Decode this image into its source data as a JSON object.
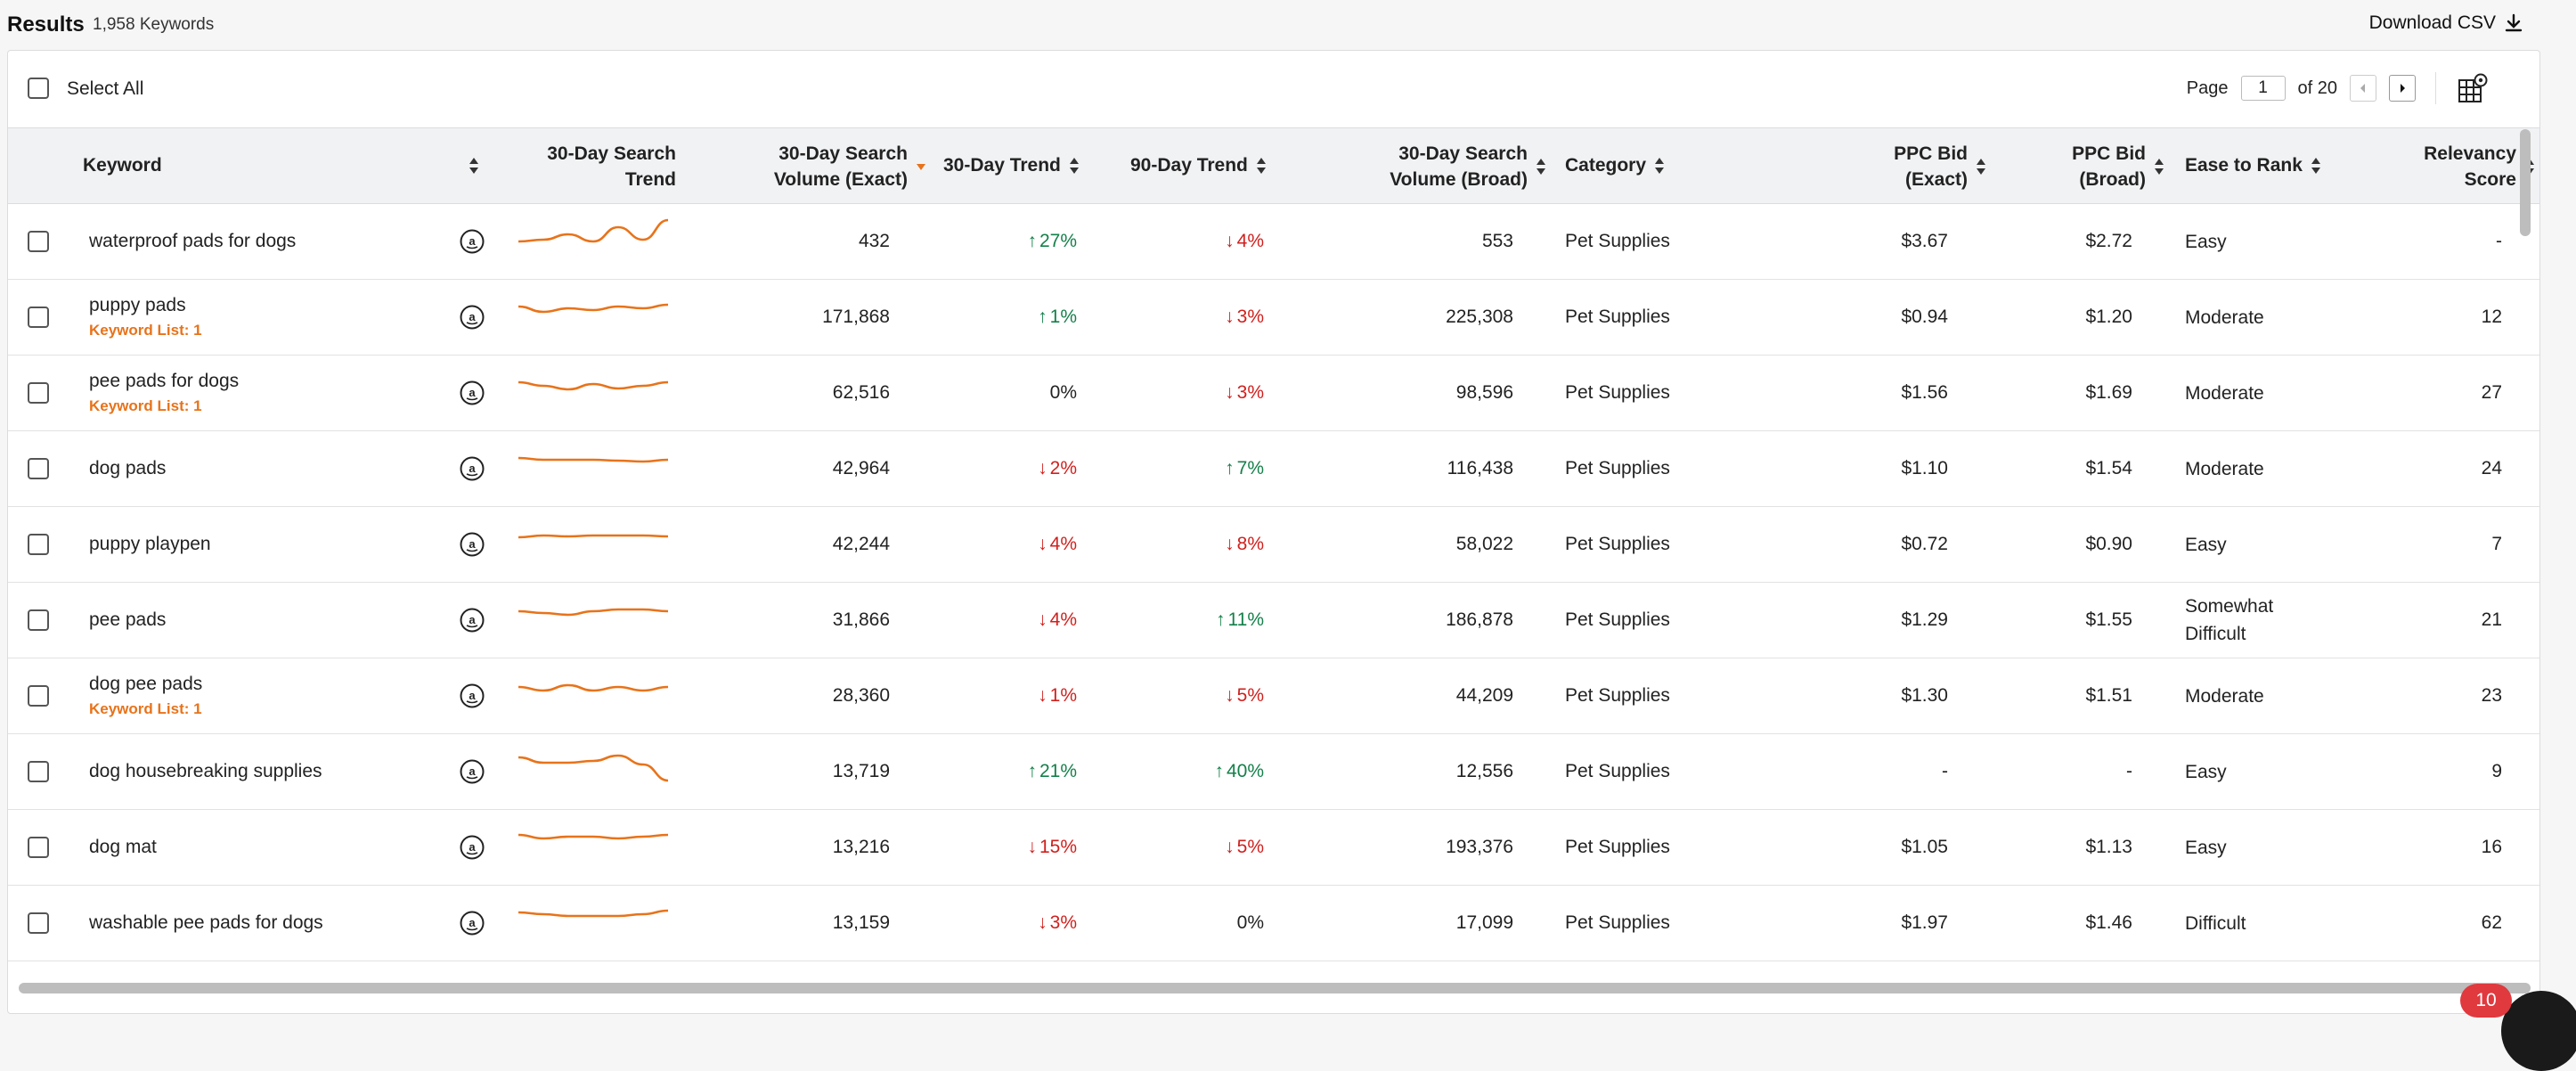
{
  "header": {
    "title": "Results",
    "count": "1,958 Keywords",
    "download_label": "Download CSV"
  },
  "toolbar": {
    "select_all": "Select All",
    "page_label": "Page",
    "page_value": "1",
    "page_of": "of 20"
  },
  "columns": {
    "keyword": "Keyword",
    "trend_chart": "30-Day Search\nTrend",
    "vol_exact": "30-Day Search\nVolume (Exact)",
    "trend30": "30-Day Trend",
    "trend90": "90-Day Trend",
    "vol_broad": "30-Day Search\nVolume (Broad)",
    "category": "Category",
    "ppc_exact": "PPC Bid\n(Exact)",
    "ppc_broad": "PPC Bid\n(Broad)",
    "ease": "Ease to Rank",
    "relevancy": "Relevancy\nScore"
  },
  "rows": [
    {
      "keyword": "waterproof pads for dogs",
      "list": "",
      "vol_exact": "432",
      "t30": "27%",
      "t30_dir": "up",
      "t90": "4%",
      "t90_dir": "down",
      "vol_broad": "553",
      "category": "Pet Supplies",
      "ppc_exact": "$3.67",
      "ppc_broad": "$2.72",
      "ease": "Easy",
      "relevancy": "-",
      "spark": [
        30,
        28,
        22,
        30,
        14,
        28,
        6
      ]
    },
    {
      "keyword": "puppy pads",
      "list": "Keyword List: 1",
      "vol_exact": "171,868",
      "t30": "1%",
      "t30_dir": "up",
      "t90": "3%",
      "t90_dir": "down",
      "vol_broad": "225,308",
      "category": "Pet Supplies",
      "ppc_exact": "$0.94",
      "ppc_broad": "$1.20",
      "ease": "Moderate",
      "relevancy": "12",
      "spark": [
        18,
        24,
        20,
        22,
        18,
        20,
        16
      ]
    },
    {
      "keyword": "pee pads for dogs",
      "list": "Keyword List: 1",
      "vol_exact": "62,516",
      "t30": "0%",
      "t30_dir": "none",
      "t90": "3%",
      "t90_dir": "down",
      "vol_broad": "98,596",
      "category": "Pet Supplies",
      "ppc_exact": "$1.56",
      "ppc_broad": "$1.69",
      "ease": "Moderate",
      "relevancy": "27",
      "spark": [
        18,
        22,
        26,
        20,
        25,
        22,
        18
      ]
    },
    {
      "keyword": "dog pads",
      "list": "",
      "vol_exact": "42,964",
      "t30": "2%",
      "t30_dir": "down",
      "t90": "7%",
      "t90_dir": "up",
      "vol_broad": "116,438",
      "category": "Pet Supplies",
      "ppc_exact": "$1.10",
      "ppc_broad": "$1.54",
      "ease": "Moderate",
      "relevancy": "24",
      "spark": [
        18,
        20,
        20,
        20,
        21,
        22,
        20
      ]
    },
    {
      "keyword": "puppy playpen",
      "list": "",
      "vol_exact": "42,244",
      "t30": "4%",
      "t30_dir": "down",
      "t90": "8%",
      "t90_dir": "down",
      "vol_broad": "58,022",
      "category": "Pet Supplies",
      "ppc_exact": "$0.72",
      "ppc_broad": "$0.90",
      "ease": "Easy",
      "relevancy": "7",
      "spark": [
        22,
        20,
        21,
        20,
        20,
        20,
        21
      ]
    },
    {
      "keyword": "pee pads",
      "list": "",
      "vol_exact": "31,866",
      "t30": "4%",
      "t30_dir": "down",
      "t90": "11%",
      "t90_dir": "up",
      "vol_broad": "186,878",
      "category": "Pet Supplies",
      "ppc_exact": "$1.29",
      "ppc_broad": "$1.55",
      "ease": "Somewhat\nDifficult",
      "relevancy": "21",
      "spark": [
        20,
        22,
        24,
        20,
        18,
        18,
        20
      ]
    },
    {
      "keyword": "dog pee pads",
      "list": "Keyword List: 1",
      "vol_exact": "28,360",
      "t30": "1%",
      "t30_dir": "down",
      "t90": "5%",
      "t90_dir": "down",
      "vol_broad": "44,209",
      "category": "Pet Supplies",
      "ppc_exact": "$1.30",
      "ppc_broad": "$1.51",
      "ease": "Moderate",
      "relevancy": "23",
      "spark": [
        20,
        24,
        18,
        24,
        20,
        24,
        20
      ]
    },
    {
      "keyword": "dog housebreaking supplies",
      "list": "",
      "vol_exact": "13,719",
      "t30": "21%",
      "t30_dir": "up",
      "t90": "40%",
      "t90_dir": "up",
      "vol_broad": "12,556",
      "category": "Pet Supplies",
      "ppc_exact": "-",
      "ppc_broad": "-",
      "ease": "Easy",
      "relevancy": "9",
      "spark": [
        14,
        20,
        20,
        18,
        12,
        22,
        40
      ]
    },
    {
      "keyword": "dog mat",
      "list": "",
      "vol_exact": "13,216",
      "t30": "15%",
      "t30_dir": "down",
      "t90": "5%",
      "t90_dir": "down",
      "vol_broad": "193,376",
      "category": "Pet Supplies",
      "ppc_exact": "$1.05",
      "ppc_broad": "$1.13",
      "ease": "Easy",
      "relevancy": "16",
      "spark": [
        16,
        20,
        18,
        18,
        20,
        18,
        16
      ]
    },
    {
      "keyword": "washable pee pads for dogs",
      "list": "",
      "vol_exact": "13,159",
      "t30": "3%",
      "t30_dir": "down",
      "t90": "0%",
      "t90_dir": "none",
      "vol_broad": "17,099",
      "category": "Pet Supplies",
      "ppc_exact": "$1.97",
      "ppc_broad": "$1.46",
      "ease": "Difficult",
      "relevancy": "62",
      "spark": [
        18,
        20,
        22,
        22,
        22,
        20,
        16
      ]
    }
  ],
  "chat_badge": "10"
}
